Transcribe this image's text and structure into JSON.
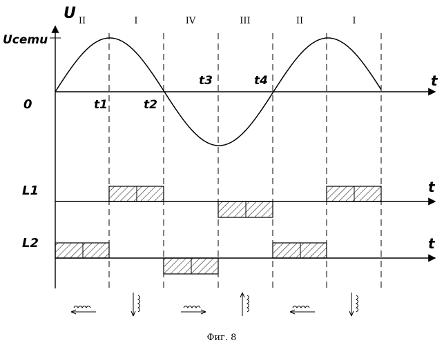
{
  "axis_labels": {
    "voltage": "U",
    "grid_voltage": "Ucemu",
    "origin": "0",
    "time": "t",
    "time_l1": "t",
    "time_l2": "t"
  },
  "moments": [
    "t1",
    "t2",
    "t3",
    "t4"
  ],
  "channels": [
    "L1",
    "L2"
  ],
  "intervals": [
    "II",
    "I",
    "IV",
    "III",
    "II",
    "I"
  ],
  "caption": "Фиг. 8",
  "pulses": {
    "L1": [
      {
        "interval": 1,
        "level": "high"
      },
      {
        "interval": 3,
        "level": "low"
      },
      {
        "interval": 5,
        "level": "high"
      }
    ],
    "L2": [
      {
        "interval": 0,
        "level": "high"
      },
      {
        "interval": 2,
        "level": "low"
      },
      {
        "interval": 4,
        "level": "high"
      }
    ]
  },
  "winding_icons": [
    "coil-arrow-left",
    "coil-arrow-down",
    "coil-arrow-right",
    "coil-arrow-up",
    "coil-arrow-left",
    "coil-arrow-down"
  ]
}
